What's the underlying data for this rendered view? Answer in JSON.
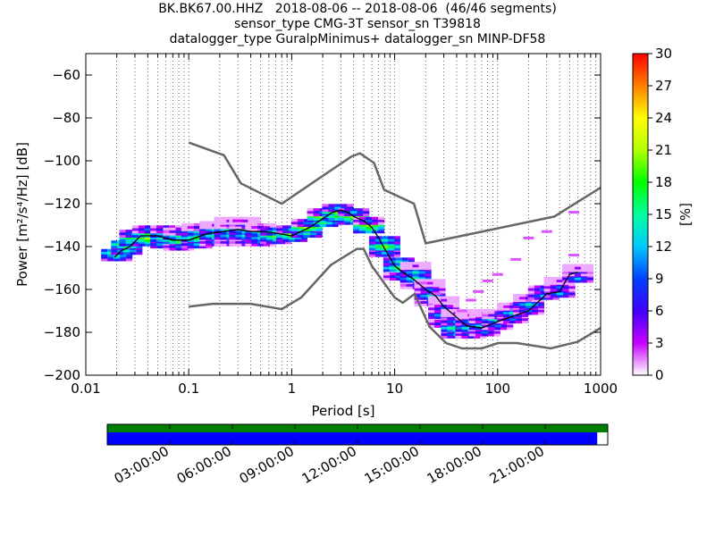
{
  "chart_data": {
    "type": "heatmap",
    "title_lines": [
      "BK.BK67.00.HHZ   2018-08-06 -- 2018-08-06  (46/46 segments)",
      "sensor_type CMG-3T sensor_sn T39818",
      "datalogger_type GuralpMinimus+ datalogger_sn MINP-DF58"
    ],
    "xlabel": "Period [s]",
    "ylabel": "Power [m²/s⁴/Hz] [dB]",
    "x_scale": "log",
    "xlim": [
      0.01,
      1000
    ],
    "ylim": [
      -200,
      -50
    ],
    "x_ticks": [
      0.01,
      0.1,
      1,
      10,
      100,
      1000
    ],
    "x_tick_labels": [
      "0.01",
      "0.1",
      "1",
      "10",
      "100",
      "1000"
    ],
    "y_ticks": [
      -200,
      -180,
      -160,
      -140,
      -120,
      -100,
      -80,
      -60
    ],
    "y_tick_labels": [
      "−200",
      "−180",
      "−160",
      "−140",
      "−120",
      "−100",
      "−80",
      "−60"
    ],
    "grid": "dotted vertical",
    "colorbar": {
      "label": "[%]",
      "min": 0,
      "max": 30,
      "ticks": [
        "0",
        "3",
        "6",
        "9",
        "12",
        "15",
        "18",
        "21",
        "24",
        "27",
        "30"
      ]
    },
    "nlnm": {
      "name": "",
      "x": [
        0.1,
        0.17,
        0.4,
        0.8,
        1.24,
        2.4,
        4.3,
        5.0,
        6.0,
        10.0,
        12.0,
        15.6,
        21.9,
        31.6,
        45.0,
        70.0,
        101.0,
        154.0,
        328.0,
        600.0,
        1000.0
      ],
      "y": [
        -168,
        -166.7,
        -166.7,
        -169.2,
        -163.7,
        -148.6,
        -141.1,
        -141.1,
        -149.0,
        -163.8,
        -166.2,
        -162.1,
        -177.5,
        -185.0,
        -187.5,
        -187.5,
        -185.0,
        -185.0,
        -187.5,
        -184.4,
        -178
      ]
    },
    "nhnm": {
      "name": "",
      "x": [
        0.1,
        0.22,
        0.32,
        0.8,
        3.8,
        4.6,
        6.3,
        7.9,
        15.4,
        20.0,
        354.8,
        1000.0
      ],
      "y": [
        -91.5,
        -97.4,
        -110.5,
        -120.0,
        -98.0,
        -96.5,
        -101.0,
        -113.5,
        -120.0,
        -138.5,
        -126.0,
        -112.5
      ]
    },
    "mode_line": {
      "x": [
        0.019,
        0.022,
        0.027,
        0.034,
        0.05,
        0.07,
        0.1,
        0.15,
        0.22,
        0.3,
        0.4,
        0.55,
        0.75,
        1.0,
        1.5,
        2.0,
        2.5,
        3.0,
        3.5,
        4.0,
        5.0,
        6.0,
        7.0,
        8.0,
        10.0,
        12.0,
        15.0,
        20.0,
        25.0,
        30.0,
        40.0,
        50.0,
        70.0,
        100.0,
        150.0,
        200.0,
        300.0,
        400.0,
        500.0,
        600.0
      ],
      "y": [
        -145,
        -142,
        -140,
        -135,
        -135,
        -137,
        -137,
        -134,
        -133,
        -132,
        -133,
        -133,
        -134,
        -135,
        -131,
        -127,
        -124,
        -123,
        -124,
        -126,
        -128,
        -131,
        -136,
        -141,
        -149,
        -152,
        -155,
        -160,
        -163,
        -168,
        -173,
        -177,
        -178,
        -175,
        -172,
        -170,
        -162,
        -161,
        -153,
        -152
      ]
    },
    "density": [
      {
        "period": 0.02,
        "power": [
          -145,
          -143
        ],
        "pct": [
          12,
          18
        ]
      },
      {
        "period": 0.025,
        "power": [
          -142,
          -139
        ],
        "pct": [
          14,
          20
        ]
      },
      {
        "period": 0.03,
        "power": [
          -138,
          -136,
          -134
        ],
        "pct": [
          16,
          20,
          12
        ]
      },
      {
        "period": 0.04,
        "power": [
          -138,
          -136,
          -134,
          -132
        ],
        "pct": [
          14,
          22,
          18,
          10
        ]
      },
      {
        "period": 0.06,
        "power": [
          -139,
          -136,
          -134,
          -132
        ],
        "pct": [
          14,
          18,
          16,
          10
        ]
      },
      {
        "period": 0.08,
        "power": [
          -140,
          -137,
          -135,
          -133
        ],
        "pct": [
          10,
          20,
          16,
          8
        ]
      },
      {
        "period": 0.12,
        "power": [
          -139,
          -136,
          -133,
          -131
        ],
        "pct": [
          12,
          18,
          14,
          6
        ]
      },
      {
        "period": 0.18,
        "power": [
          -138,
          -135,
          -132,
          -130
        ],
        "pct": [
          10,
          16,
          14,
          4
        ]
      },
      {
        "period": 0.25,
        "power": [
          -138,
          -135,
          -132,
          -130,
          -128
        ],
        "pct": [
          8,
          14,
          16,
          6,
          4
        ]
      },
      {
        "period": 0.35,
        "power": [
          -138,
          -135,
          -132,
          -130,
          -128
        ],
        "pct": [
          8,
          14,
          16,
          8,
          4
        ]
      },
      {
        "period": 0.5,
        "power": [
          -138,
          -136,
          -133,
          -131
        ],
        "pct": [
          10,
          14,
          16,
          6
        ]
      },
      {
        "period": 0.7,
        "power": [
          -137,
          -135,
          -133
        ],
        "pct": [
          12,
          20,
          14
        ]
      },
      {
        "period": 1.0,
        "power": [
          -136,
          -134,
          -132
        ],
        "pct": [
          14,
          22,
          12
        ]
      },
      {
        "period": 1.4,
        "power": [
          -134,
          -131,
          -129
        ],
        "pct": [
          14,
          22,
          10
        ]
      },
      {
        "period": 2.0,
        "power": [
          -129,
          -126,
          -124
        ],
        "pct": [
          16,
          22,
          10
        ]
      },
      {
        "period": 2.8,
        "power": [
          -126,
          -123,
          -122
        ],
        "pct": [
          18,
          24,
          12
        ]
      },
      {
        "period": 4.0,
        "power": [
          -128,
          -126,
          -124
        ],
        "pct": [
          14,
          22,
          12
        ]
      },
      {
        "period": 5.6,
        "power": [
          -132,
          -130,
          -128
        ],
        "pct": [
          16,
          22,
          10
        ]
      },
      {
        "period": 8.0,
        "power": [
          -143,
          -140,
          -137
        ],
        "pct": [
          12,
          20,
          14
        ]
      },
      {
        "period": 11.0,
        "power": [
          -154,
          -150,
          -147
        ],
        "pct": [
          10,
          18,
          14
        ]
      },
      {
        "period": 16.0,
        "power": [
          -158,
          -155,
          -152,
          -149
        ],
        "pct": [
          8,
          16,
          14,
          4
        ]
      },
      {
        "period": 22.0,
        "power": [
          -166,
          -163,
          -160,
          -157
        ],
        "pct": [
          8,
          14,
          10,
          3
        ]
      },
      {
        "period": 30.0,
        "power": [
          -176,
          -172,
          -169,
          -165
        ],
        "pct": [
          10,
          14,
          10,
          4
        ]
      },
      {
        "period": 40.0,
        "power": [
          -181,
          -178,
          -175,
          -171
        ],
        "pct": [
          12,
          18,
          12,
          4
        ]
      },
      {
        "period": 55.0,
        "power": [
          -181,
          -178,
          -175,
          -172
        ],
        "pct": [
          10,
          16,
          12,
          3
        ]
      },
      {
        "period": 75.0,
        "power": [
          -180,
          -177,
          -174,
          -171
        ],
        "pct": [
          10,
          16,
          10,
          3
        ]
      },
      {
        "period": 100.0,
        "power": [
          -177,
          -174,
          -172
        ],
        "pct": [
          10,
          16,
          8
        ]
      },
      {
        "period": 140.0,
        "power": [
          -174,
          -171,
          -168
        ],
        "pct": [
          10,
          14,
          6
        ]
      },
      {
        "period": 200.0,
        "power": [
          -170,
          -167,
          -164
        ],
        "pct": [
          10,
          14,
          6
        ]
      },
      {
        "period": 280.0,
        "power": [
          -163,
          -160
        ],
        "pct": [
          12,
          10
        ]
      },
      {
        "period": 400.0,
        "power": [
          -162,
          -159,
          -156
        ],
        "pct": [
          12,
          10,
          4
        ]
      },
      {
        "period": 600.0,
        "power": [
          -155,
          -152,
          -150
        ],
        "pct": [
          12,
          8,
          4
        ]
      }
    ],
    "sparse": [
      {
        "period": 0.3,
        "power": -128,
        "pct": 3
      },
      {
        "period": 18.0,
        "power": -157,
        "pct": 2
      },
      {
        "period": 25.0,
        "power": -162,
        "pct": 2
      },
      {
        "period": 45.0,
        "power": -170,
        "pct": 2
      },
      {
        "period": 55.0,
        "power": -165,
        "pct": 2
      },
      {
        "period": 65.0,
        "power": -161,
        "pct": 2
      },
      {
        "period": 80.0,
        "power": -156,
        "pct": 2
      },
      {
        "period": 100.0,
        "power": -153,
        "pct": 2
      },
      {
        "period": 150.0,
        "power": -146,
        "pct": 2
      },
      {
        "period": 200.0,
        "power": -136,
        "pct": 2
      },
      {
        "period": 300.0,
        "power": -133,
        "pct": 2
      },
      {
        "period": 550.0,
        "power": -124,
        "pct": 2
      },
      {
        "period": 550.0,
        "power": -144,
        "pct": 2
      }
    ]
  },
  "timeline": {
    "tick_labels": [
      "03:00:00",
      "06:00:00",
      "09:00:00",
      "12:00:00",
      "15:00:00",
      "18:00:00",
      "21:00:00"
    ],
    "tick_hours": [
      3,
      6,
      9,
      12,
      15,
      18,
      21
    ],
    "data_coverage": 1.0,
    "segments_coverage": 0.979,
    "top_color": "#008000",
    "bottom_color": "#0000ff"
  }
}
